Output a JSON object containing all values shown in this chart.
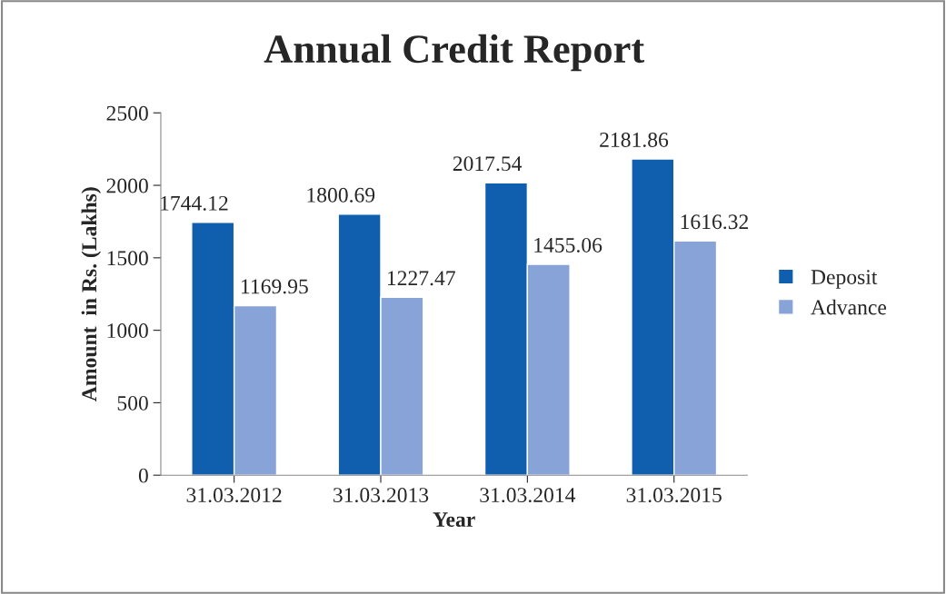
{
  "chart_data": {
    "type": "bar",
    "title": "Annual Credit Report",
    "xlabel": "Year",
    "ylabel": "Amount  in Rs. (Lakhs)",
    "categories": [
      "31.03.2012",
      "31.03.2013",
      "31.03.2014",
      "31.03.2015"
    ],
    "series": [
      {
        "name": "Deposit",
        "color": "#0f5fae",
        "values": [
          1744.12,
          1800.69,
          2017.54,
          2181.86
        ]
      },
      {
        "name": "Advance",
        "color": "#88a3d7",
        "values": [
          1169.95,
          1227.47,
          1455.06,
          1616.32
        ]
      }
    ],
    "ylim": [
      0,
      2500
    ],
    "yticks": [
      0,
      500,
      1000,
      1500,
      2000,
      2500
    ],
    "grid": false,
    "legend": "right",
    "data_labels": true
  }
}
